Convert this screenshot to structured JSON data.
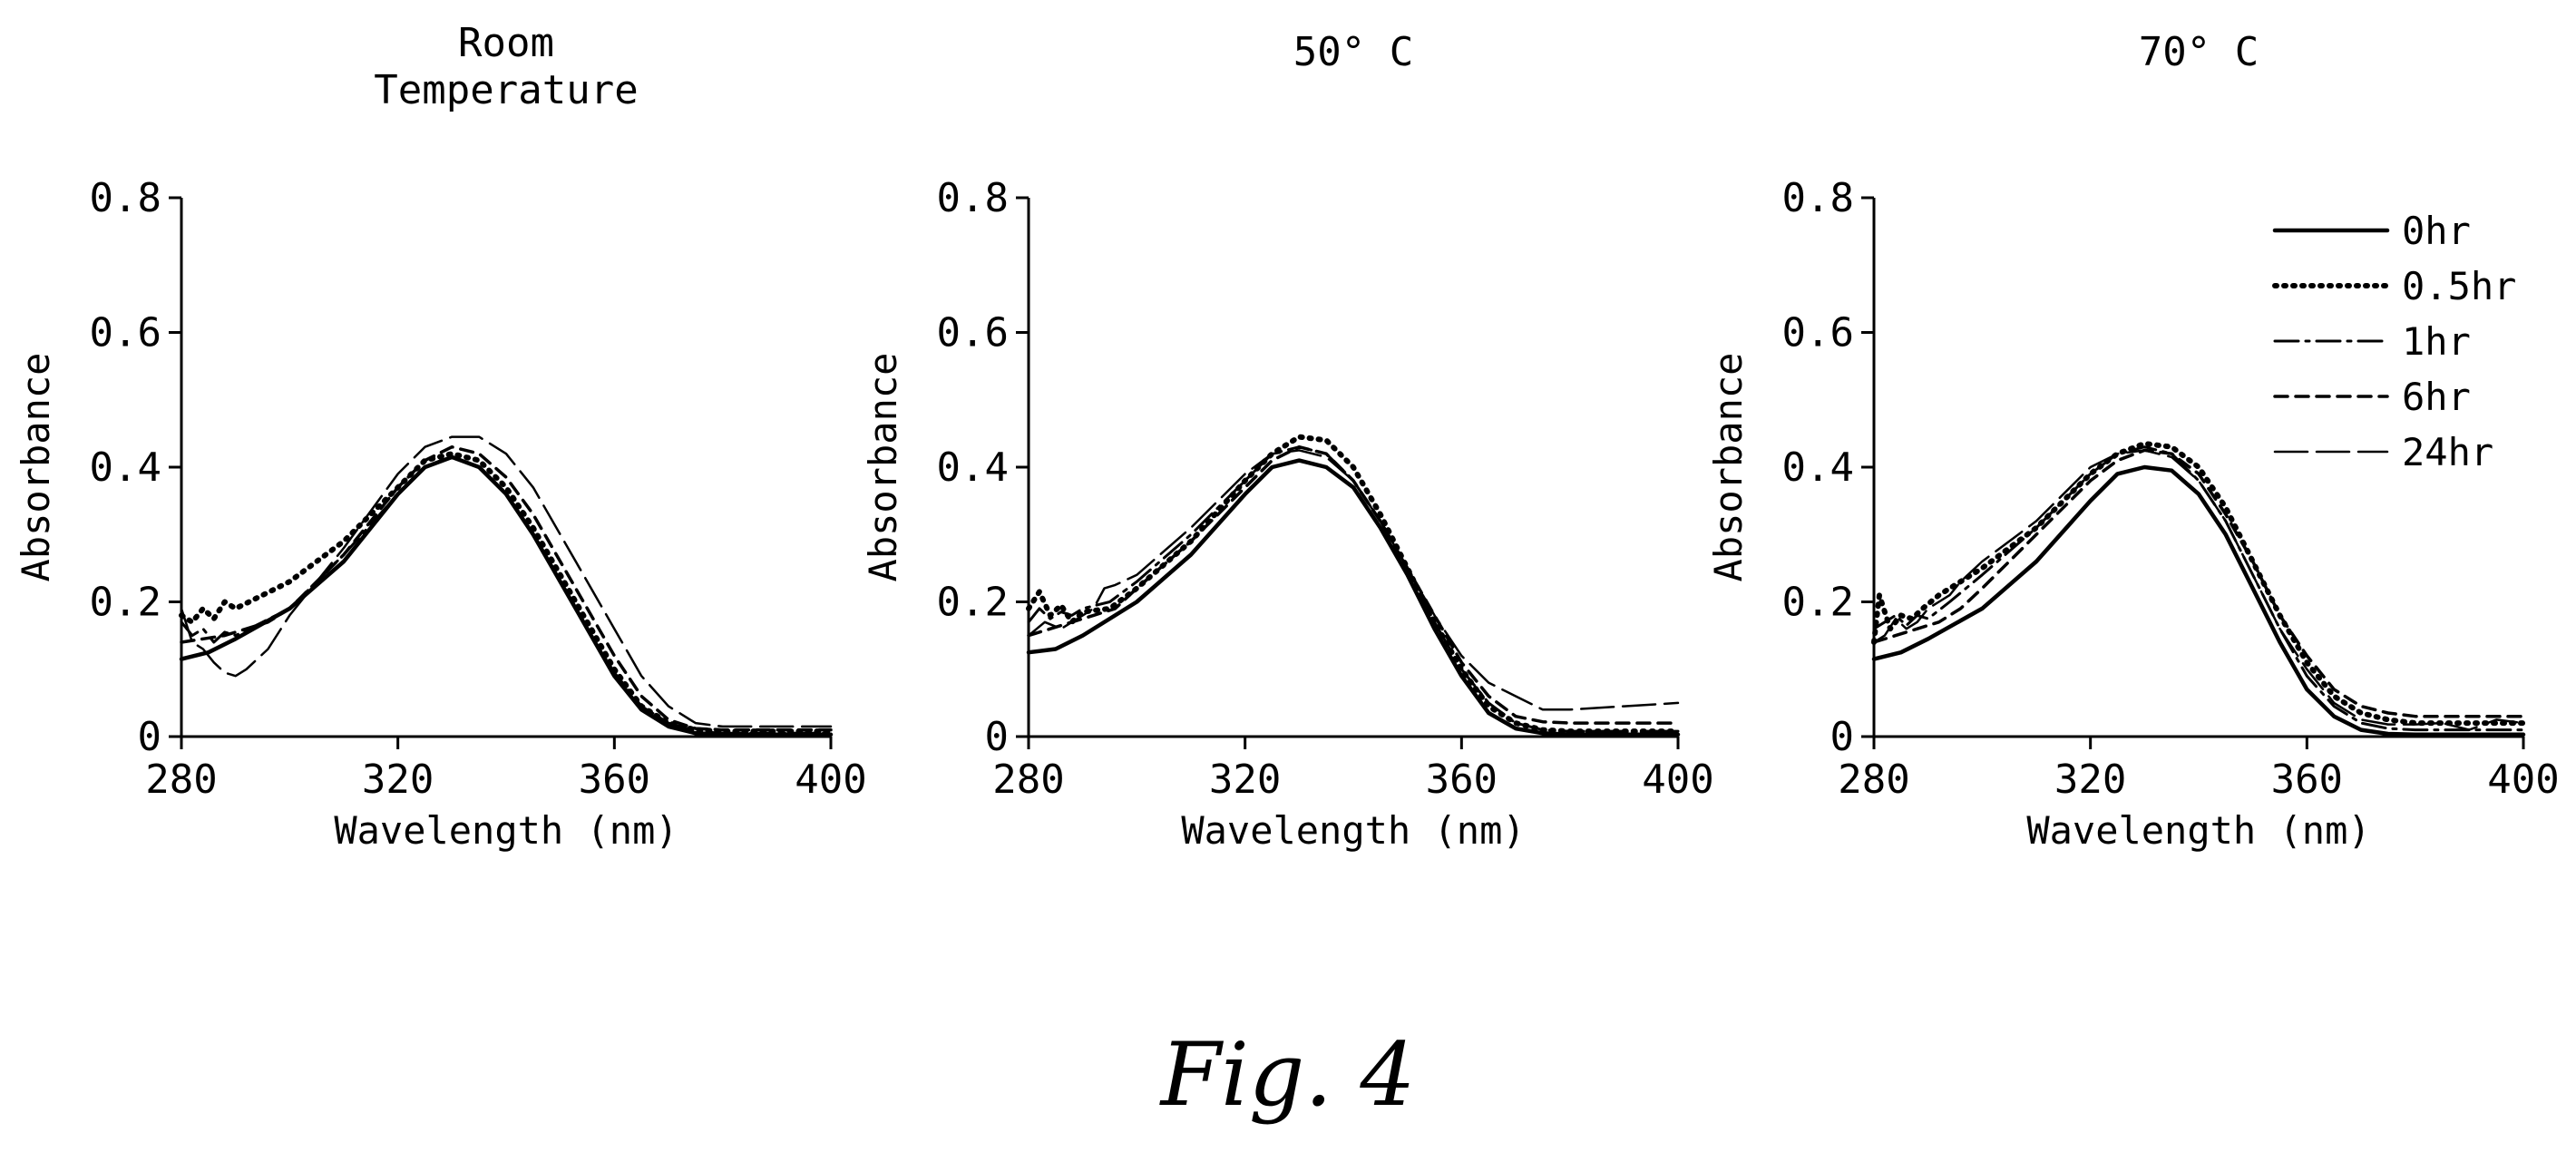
{
  "figure": {
    "caption": "Fig. 4"
  },
  "chart_data": [
    {
      "type": "line",
      "title_lines": [
        "Room",
        "Temperature"
      ],
      "xlabel": "Wavelength (nm)",
      "ylabel": "Absorbance",
      "xlim": [
        280,
        400
      ],
      "ylim": [
        0,
        0.8
      ],
      "xticks": [
        "280",
        "320",
        "360",
        "400"
      ],
      "yticks": [
        "0",
        "0.2",
        "0.4",
        "0.6",
        "0.8"
      ],
      "grid": false,
      "series": [
        {
          "name": "0hr",
          "style": "solid",
          "x": [
            280,
            285,
            290,
            300,
            310,
            320,
            325,
            330,
            335,
            340,
            345,
            350,
            355,
            360,
            365,
            370,
            375,
            380,
            390,
            400
          ],
          "y": [
            0.115,
            0.125,
            0.145,
            0.19,
            0.26,
            0.36,
            0.4,
            0.415,
            0.4,
            0.36,
            0.3,
            0.23,
            0.16,
            0.09,
            0.04,
            0.015,
            0.005,
            0.003,
            0.003,
            0.003
          ]
        },
        {
          "name": "0.5hr",
          "style": "dotted",
          "x": [
            280,
            282,
            284,
            286,
            288,
            290,
            295,
            300,
            310,
            320,
            325,
            330,
            335,
            340,
            345,
            350,
            355,
            360,
            365,
            370,
            375,
            380,
            390,
            400
          ],
          "y": [
            0.18,
            0.17,
            0.19,
            0.175,
            0.2,
            0.19,
            0.21,
            0.23,
            0.29,
            0.37,
            0.41,
            0.42,
            0.41,
            0.37,
            0.31,
            0.24,
            0.17,
            0.1,
            0.045,
            0.02,
            0.01,
            0.008,
            0.008,
            0.008
          ]
        },
        {
          "name": "1hr",
          "style": "dashdot",
          "x": [
            280,
            282,
            284,
            286,
            288,
            290,
            295,
            300,
            310,
            320,
            325,
            330,
            335,
            340,
            345,
            350,
            355,
            360,
            365,
            370,
            375,
            380,
            390,
            400
          ],
          "y": [
            0.17,
            0.15,
            0.16,
            0.14,
            0.155,
            0.15,
            0.17,
            0.19,
            0.27,
            0.36,
            0.4,
            0.415,
            0.4,
            0.36,
            0.3,
            0.23,
            0.16,
            0.095,
            0.045,
            0.02,
            0.008,
            0.005,
            0.005,
            0.005
          ]
        },
        {
          "name": "6hr",
          "style": "dashed",
          "x": [
            280,
            284,
            288,
            292,
            296,
            300,
            310,
            320,
            325,
            330,
            335,
            340,
            345,
            350,
            355,
            360,
            365,
            370,
            375,
            380,
            390,
            400
          ],
          "y": [
            0.14,
            0.145,
            0.15,
            0.16,
            0.17,
            0.19,
            0.27,
            0.37,
            0.41,
            0.43,
            0.42,
            0.385,
            0.33,
            0.26,
            0.19,
            0.12,
            0.06,
            0.025,
            0.012,
            0.01,
            0.01,
            0.01
          ]
        },
        {
          "name": "24hr",
          "style": "longdash",
          "x": [
            280,
            282,
            284,
            286,
            288,
            290,
            292,
            296,
            300,
            310,
            320,
            325,
            330,
            335,
            340,
            345,
            350,
            355,
            360,
            365,
            370,
            375,
            380,
            385,
            390,
            400
          ],
          "y": [
            0.19,
            0.14,
            0.13,
            0.11,
            0.095,
            0.09,
            0.1,
            0.13,
            0.18,
            0.28,
            0.39,
            0.43,
            0.445,
            0.445,
            0.42,
            0.37,
            0.3,
            0.23,
            0.16,
            0.09,
            0.045,
            0.02,
            0.015,
            0.015,
            0.015,
            0.015
          ]
        }
      ]
    },
    {
      "type": "line",
      "title_lines": [
        "50° C"
      ],
      "xlabel": "Wavelength (nm)",
      "ylabel": "Absorbance",
      "xlim": [
        280,
        400
      ],
      "ylim": [
        0,
        0.8
      ],
      "xticks": [
        "280",
        "320",
        "360",
        "400"
      ],
      "yticks": [
        "0",
        "0.2",
        "0.4",
        "0.6",
        "0.8"
      ],
      "grid": false,
      "series": [
        {
          "name": "0hr",
          "style": "solid",
          "x": [
            280,
            285,
            290,
            300,
            310,
            320,
            325,
            330,
            335,
            340,
            345,
            350,
            355,
            360,
            365,
            370,
            375,
            380,
            390,
            400
          ],
          "y": [
            0.125,
            0.13,
            0.15,
            0.2,
            0.27,
            0.36,
            0.4,
            0.41,
            0.4,
            0.37,
            0.31,
            0.24,
            0.16,
            0.09,
            0.035,
            0.012,
            0.005,
            0.003,
            0.003,
            0.003
          ]
        },
        {
          "name": "0.5hr",
          "style": "dotted",
          "x": [
            280,
            282,
            284,
            286,
            288,
            290,
            295,
            300,
            310,
            320,
            325,
            330,
            335,
            340,
            345,
            350,
            355,
            360,
            365,
            370,
            375,
            380,
            390,
            400
          ],
          "y": [
            0.19,
            0.215,
            0.18,
            0.195,
            0.17,
            0.185,
            0.19,
            0.22,
            0.29,
            0.38,
            0.42,
            0.445,
            0.44,
            0.4,
            0.33,
            0.25,
            0.17,
            0.1,
            0.045,
            0.02,
            0.01,
            0.008,
            0.008,
            0.008
          ]
        },
        {
          "name": "1hr",
          "style": "dashdot",
          "x": [
            280,
            282,
            284,
            286,
            288,
            290,
            295,
            300,
            310,
            320,
            325,
            330,
            335,
            340,
            345,
            350,
            355,
            360,
            365,
            370,
            375,
            380,
            390,
            400
          ],
          "y": [
            0.17,
            0.19,
            0.175,
            0.185,
            0.18,
            0.19,
            0.2,
            0.23,
            0.3,
            0.38,
            0.42,
            0.43,
            0.42,
            0.38,
            0.32,
            0.25,
            0.17,
            0.1,
            0.05,
            0.02,
            0.01,
            0.008,
            0.008,
            0.008
          ]
        },
        {
          "name": "6hr",
          "style": "dashed",
          "x": [
            280,
            284,
            288,
            292,
            296,
            300,
            310,
            320,
            325,
            330,
            335,
            340,
            345,
            350,
            355,
            360,
            365,
            370,
            375,
            380,
            390,
            400
          ],
          "y": [
            0.15,
            0.16,
            0.17,
            0.18,
            0.19,
            0.22,
            0.29,
            0.37,
            0.41,
            0.43,
            0.42,
            0.38,
            0.32,
            0.25,
            0.18,
            0.11,
            0.06,
            0.03,
            0.022,
            0.02,
            0.02,
            0.02
          ]
        },
        {
          "name": "24hr",
          "style": "longdash",
          "x": [
            280,
            283,
            286,
            290,
            292,
            294,
            296,
            300,
            310,
            320,
            325,
            330,
            335,
            340,
            345,
            350,
            355,
            360,
            365,
            370,
            375,
            380,
            390,
            400
          ],
          "y": [
            0.15,
            0.17,
            0.16,
            0.18,
            0.19,
            0.22,
            0.225,
            0.24,
            0.31,
            0.39,
            0.42,
            0.425,
            0.415,
            0.38,
            0.32,
            0.25,
            0.18,
            0.12,
            0.08,
            0.06,
            0.04,
            0.04,
            0.045,
            0.05
          ]
        }
      ]
    },
    {
      "type": "line",
      "title_lines": [
        "70° C"
      ],
      "xlabel": "Wavelength (nm)",
      "ylabel": "Absorbance",
      "xlim": [
        280,
        400
      ],
      "ylim": [
        0,
        0.8
      ],
      "xticks": [
        "280",
        "320",
        "360",
        "400"
      ],
      "yticks": [
        "0",
        "0.2",
        "0.4",
        "0.6",
        "0.8"
      ],
      "grid": false,
      "legend": "top-right",
      "series": [
        {
          "name": "0hr",
          "style": "solid",
          "x": [
            280,
            285,
            290,
            300,
            310,
            320,
            325,
            330,
            335,
            340,
            345,
            350,
            355,
            360,
            365,
            370,
            375,
            380,
            390,
            400
          ],
          "y": [
            0.115,
            0.125,
            0.145,
            0.19,
            0.26,
            0.35,
            0.39,
            0.4,
            0.395,
            0.36,
            0.3,
            0.22,
            0.14,
            0.07,
            0.03,
            0.01,
            0.004,
            0.003,
            0.003,
            0.003
          ]
        },
        {
          "name": "0.5hr",
          "style": "dotted",
          "x": [
            280,
            281,
            283,
            285,
            287,
            289,
            292,
            296,
            300,
            310,
            320,
            325,
            330,
            335,
            340,
            345,
            350,
            355,
            360,
            365,
            370,
            375,
            380,
            390,
            395,
            400
          ],
          "y": [
            0.14,
            0.21,
            0.16,
            0.18,
            0.175,
            0.19,
            0.21,
            0.23,
            0.25,
            0.31,
            0.39,
            0.42,
            0.435,
            0.43,
            0.4,
            0.34,
            0.26,
            0.18,
            0.11,
            0.06,
            0.035,
            0.025,
            0.02,
            0.02,
            0.02,
            0.02
          ]
        },
        {
          "name": "1hr",
          "style": "dashdot",
          "x": [
            280,
            282,
            284,
            286,
            288,
            290,
            294,
            300,
            310,
            320,
            325,
            330,
            335,
            340,
            345,
            350,
            355,
            360,
            365,
            370,
            375,
            380,
            390,
            400
          ],
          "y": [
            0.16,
            0.17,
            0.18,
            0.165,
            0.18,
            0.175,
            0.2,
            0.24,
            0.31,
            0.39,
            0.42,
            0.43,
            0.42,
            0.38,
            0.32,
            0.24,
            0.16,
            0.09,
            0.045,
            0.02,
            0.012,
            0.01,
            0.01,
            0.01
          ]
        },
        {
          "name": "6hr",
          "style": "dashed",
          "x": [
            280,
            284,
            288,
            292,
            296,
            300,
            310,
            320,
            325,
            330,
            335,
            340,
            345,
            350,
            355,
            360,
            365,
            370,
            375,
            380,
            390,
            400
          ],
          "y": [
            0.14,
            0.15,
            0.16,
            0.17,
            0.19,
            0.22,
            0.3,
            0.38,
            0.41,
            0.425,
            0.42,
            0.39,
            0.33,
            0.26,
            0.18,
            0.12,
            0.07,
            0.045,
            0.035,
            0.03,
            0.03,
            0.03
          ]
        },
        {
          "name": "24hr",
          "style": "longdash",
          "x": [
            280,
            282,
            284,
            286,
            288,
            290,
            292,
            294,
            296,
            300,
            310,
            320,
            325,
            330,
            335,
            340,
            345,
            350,
            355,
            360,
            365,
            370,
            375,
            380,
            385,
            390,
            395,
            400
          ],
          "y": [
            0.14,
            0.15,
            0.175,
            0.16,
            0.17,
            0.19,
            0.2,
            0.21,
            0.23,
            0.26,
            0.32,
            0.4,
            0.42,
            0.425,
            0.415,
            0.38,
            0.32,
            0.24,
            0.16,
            0.1,
            0.05,
            0.025,
            0.018,
            0.018,
            0.02,
            0.01,
            0.025,
            0.02
          ]
        }
      ]
    }
  ],
  "styles": {
    "line_color": "#000000",
    "background": "#ffffff"
  }
}
